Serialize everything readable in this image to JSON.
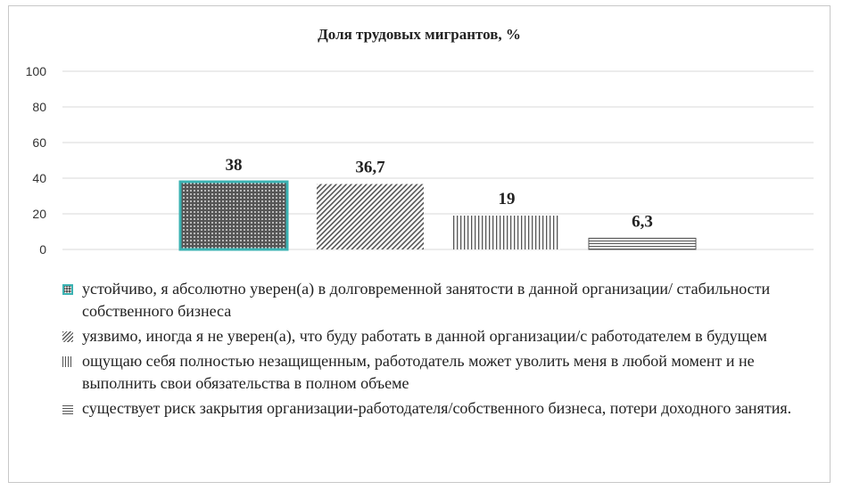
{
  "chart_data": {
    "type": "bar",
    "title": "Доля трудовых мигрантов, %",
    "xlabel": "",
    "ylabel": "",
    "ylim": [
      0,
      100
    ],
    "yticks": [
      0,
      20,
      40,
      60,
      80,
      100
    ],
    "grid": true,
    "legend_position": "bottom",
    "series": [
      {
        "name": "устойчиво, я абсолютно уверен(а) в долговременной занятости в данной организации/ стабильности собственного бизнеса",
        "value": 38,
        "label": "38"
      },
      {
        "name": "уязвимо, иногда я не уверен(а), что буду работать в данной организации/с работодателем в будущем",
        "value": 36.7,
        "label": "36,7"
      },
      {
        "name": "ощущаю себя полностью незащищенным, работодатель может уволить меня в любой момент и не выполнить свои обязательства в полном объеме",
        "value": 19,
        "label": "19"
      },
      {
        "name": "существует риск закрытия организации-работодателя/собственного бизнеса, потери доходного занятия.",
        "value": 6.3,
        "label": "6,3"
      }
    ]
  },
  "colors": {
    "bar_pattern": "#555555",
    "highlight_border": "#3bb3b3",
    "gridline": "#d9d9d9",
    "text": "#222222"
  }
}
